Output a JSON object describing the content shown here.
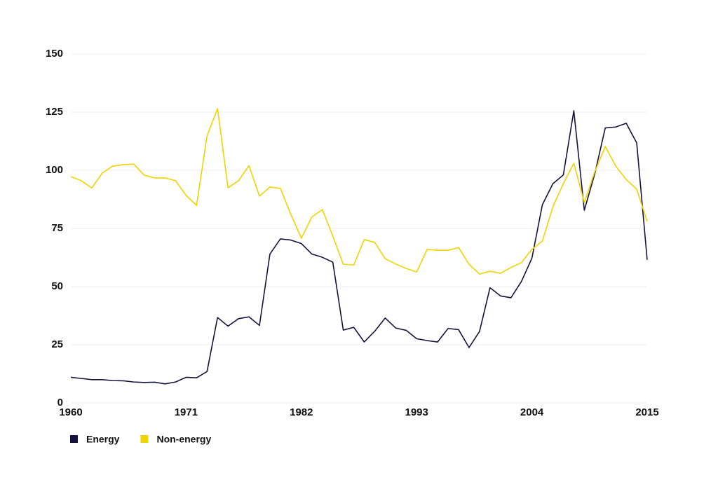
{
  "chart_data": {
    "type": "line",
    "x": [
      1960,
      1961,
      1962,
      1963,
      1964,
      1965,
      1966,
      1967,
      1968,
      1969,
      1970,
      1971,
      1972,
      1973,
      1974,
      1975,
      1976,
      1977,
      1978,
      1979,
      1980,
      1981,
      1982,
      1983,
      1984,
      1985,
      1986,
      1987,
      1988,
      1989,
      1990,
      1991,
      1992,
      1993,
      1994,
      1995,
      1996,
      1997,
      1998,
      1999,
      2000,
      2001,
      2002,
      2003,
      2004,
      2005,
      2006,
      2007,
      2008,
      2009,
      2010,
      2011,
      2012,
      2013,
      2014,
      2015
    ],
    "series": [
      {
        "name": "Energy",
        "color": "#15133d",
        "values": [
          11,
          10.5,
          10,
          10,
          9.6,
          9.5,
          9,
          8.8,
          8.9,
          8.2,
          9,
          11,
          10.8,
          13.5,
          36.7,
          33,
          36.2,
          37,
          33.3,
          64,
          70.5,
          70,
          68.5,
          64,
          62.6,
          60.5,
          31.3,
          32.5,
          26.2,
          30.8,
          36.5,
          32.2,
          31.2,
          27.6,
          26.8,
          26.2,
          32,
          31.5,
          23.8,
          30.7,
          49.5,
          46,
          45.2,
          52.2,
          62.2,
          85.2,
          94.2,
          98,
          125.6,
          82.8,
          98.5,
          118.2,
          118.6,
          120.2,
          111.8,
          61.5
        ]
      },
      {
        "name": "Non-energy",
        "color": "#f0d400",
        "values": [
          97.3,
          95.5,
          92.4,
          98.8,
          101.8,
          102.4,
          102.7,
          97.9,
          96.7,
          96.7,
          95.5,
          89.2,
          84.9,
          114.8,
          126.5,
          92.5,
          95.5,
          102,
          88.9,
          92.8,
          92.2,
          81,
          70.8,
          79.9,
          83.1,
          71.7,
          59.6,
          59.3,
          70.2,
          69,
          62,
          59.7,
          57.8,
          56.3,
          66,
          65.6,
          65.6,
          66.8,
          59.6,
          55.4,
          56.6,
          55.7,
          58.2,
          60.3,
          66,
          69.6,
          84.3,
          94.3,
          103,
          86.1,
          99.4,
          110.2,
          101.8,
          96,
          91.9,
          78
        ]
      }
    ],
    "xlim": [
      1960,
      2015
    ],
    "xticks": [
      1960,
      1971,
      1982,
      1993,
      2004,
      2015
    ],
    "ylim": [
      0,
      150
    ],
    "yticks": [
      0,
      25,
      50,
      75,
      100,
      125,
      150
    ],
    "grid": true,
    "legend": "bottom-left"
  }
}
